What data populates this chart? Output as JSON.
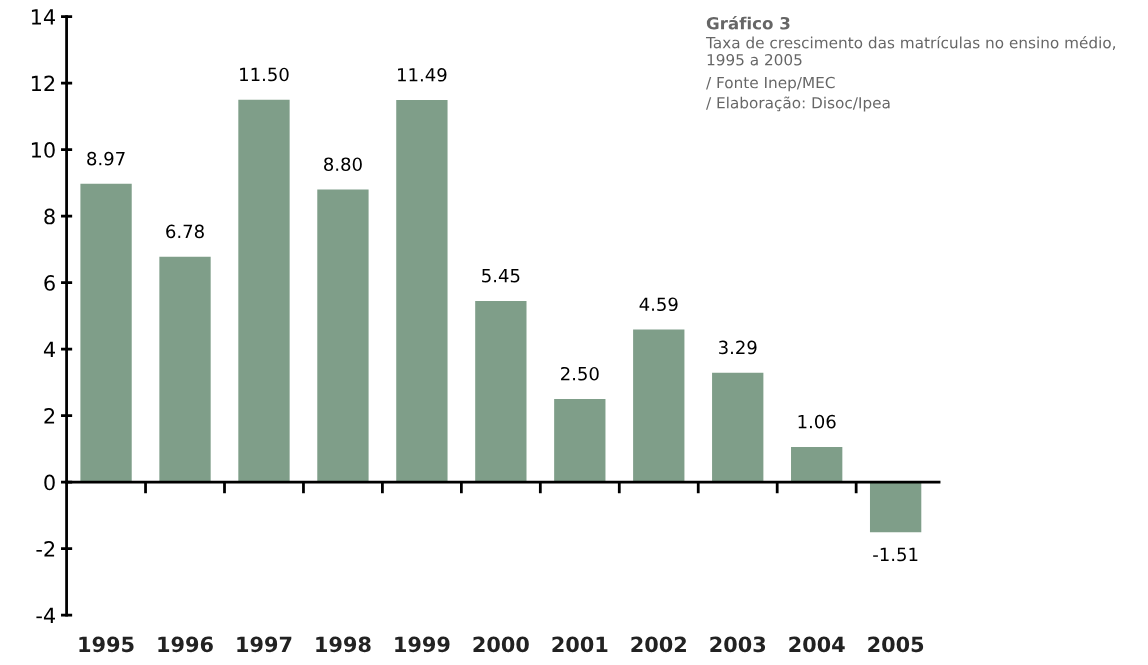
{
  "chart_data": {
    "type": "bar",
    "title": "Gráfico 3",
    "subtitle": "Taxa de crescimento das matrículas no ensino médio, 1995 a 2005",
    "annotations": [
      "/ Fonte Inep/MEC",
      "/ Elaboração: Disoc/Ipea"
    ],
    "categories": [
      "1995",
      "1996",
      "1997",
      "1998",
      "1999",
      "2000",
      "2001",
      "2002",
      "2003",
      "2004",
      "2005"
    ],
    "values": [
      8.97,
      6.78,
      11.5,
      8.8,
      11.49,
      5.45,
      2.5,
      4.59,
      3.29,
      1.06,
      -1.51
    ],
    "value_labels": [
      "8.97",
      "6.78",
      "11.50",
      "8.80",
      "11.49",
      "5.45",
      "2.50",
      "4.59",
      "3.29",
      "1.06",
      "-1.51"
    ],
    "color": "#7f9e89",
    "ylim": [
      -4,
      14
    ],
    "yticks": [
      -4,
      -2,
      0,
      2,
      4,
      6,
      8,
      10,
      12,
      14
    ],
    "legend": false
  }
}
